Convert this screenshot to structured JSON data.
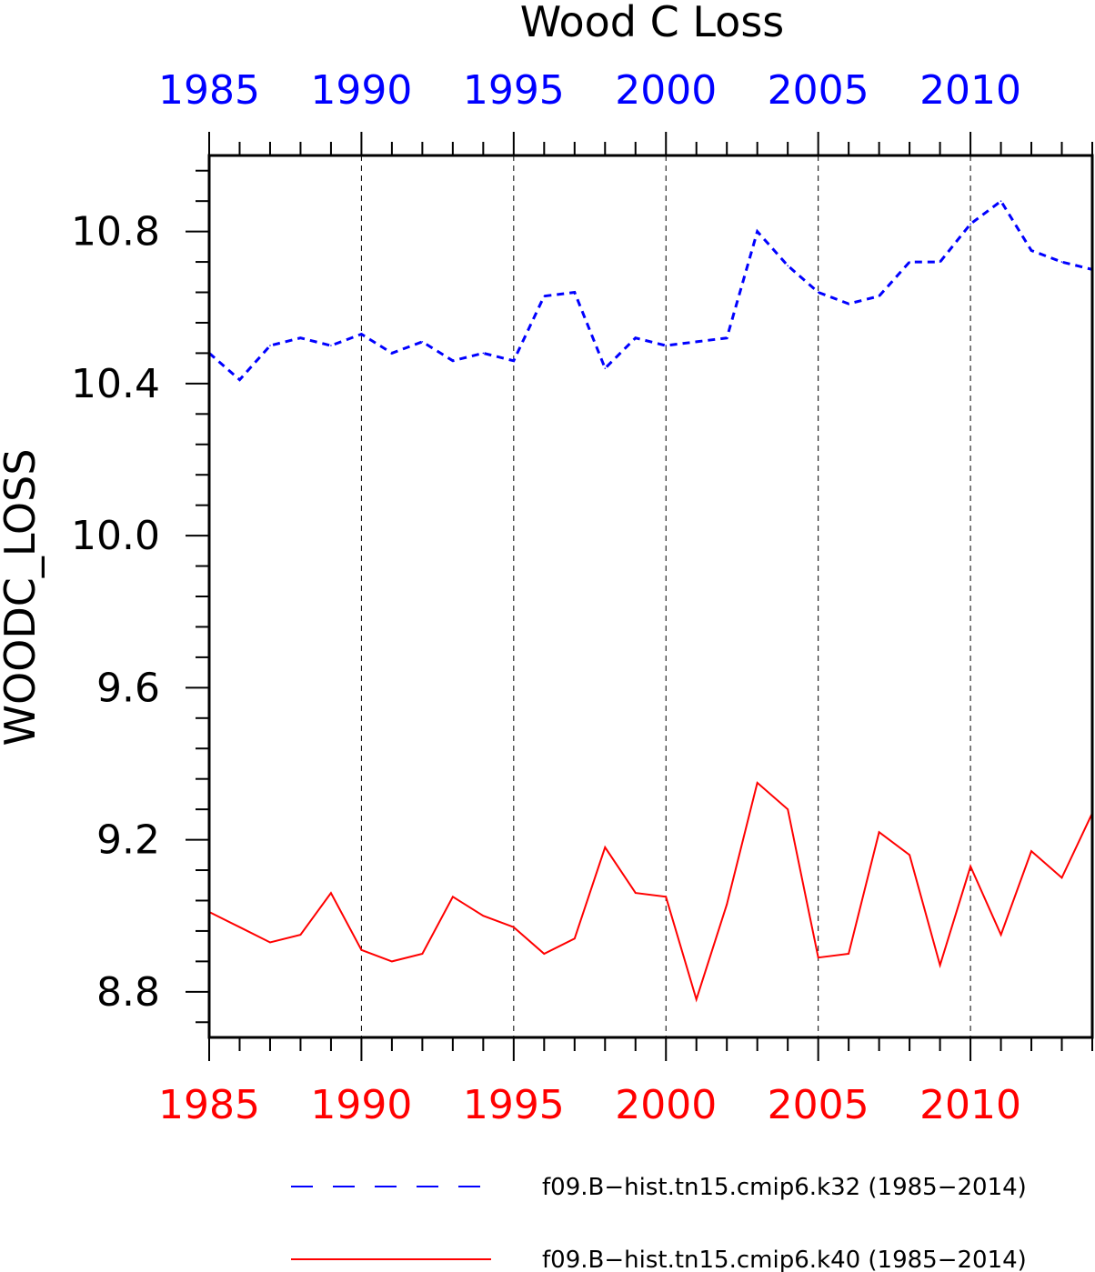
{
  "chart_data": {
    "type": "line",
    "title": "Wood C Loss",
    "xlabel": "",
    "ylabel": "WOODC_LOSS",
    "xlim": [
      1985,
      2014
    ],
    "ylim": [
      8.68,
      11.0
    ],
    "x_ticks": [
      1985,
      1990,
      1995,
      2000,
      2005,
      2010
    ],
    "y_ticks": [
      8.8,
      9.2,
      9.6,
      10.0,
      10.4,
      10.8
    ],
    "y_tick_labels": [
      "8.8",
      "9.2",
      "9.6",
      "10.0",
      "10.4",
      "10.8"
    ],
    "grid": "vertical dashed at major x ticks",
    "legend_position": "bottom",
    "x": [
      1985,
      1986,
      1987,
      1988,
      1989,
      1990,
      1991,
      1992,
      1993,
      1994,
      1995,
      1996,
      1997,
      1998,
      1999,
      2000,
      2001,
      2002,
      2003,
      2004,
      2005,
      2006,
      2007,
      2008,
      2009,
      2010,
      2011,
      2012,
      2013,
      2014
    ],
    "series": [
      {
        "name": "f09.B−hist.tn15.cmip6.k32 (1985−2014)",
        "color": "#0000ff",
        "style": "dashed",
        "axis_label_color": "top",
        "values": [
          10.48,
          10.41,
          10.5,
          10.52,
          10.5,
          10.53,
          10.48,
          10.51,
          10.46,
          10.48,
          10.46,
          10.63,
          10.64,
          10.44,
          10.52,
          10.5,
          10.51,
          10.52,
          10.8,
          10.71,
          10.64,
          10.61,
          10.63,
          10.72,
          10.72,
          10.82,
          10.88,
          10.75,
          10.72,
          10.7
        ]
      },
      {
        "name": "f09.B−hist.tn15.cmip6.k40 (1985−2014)",
        "color": "#ff0000",
        "style": "solid",
        "axis_label_color": "bottom",
        "values": [
          9.01,
          8.97,
          8.93,
          8.95,
          9.06,
          8.91,
          8.88,
          8.9,
          9.05,
          9.0,
          8.97,
          8.9,
          8.94,
          9.18,
          9.06,
          9.05,
          8.78,
          9.03,
          9.35,
          9.28,
          8.89,
          8.9,
          9.22,
          9.16,
          8.87,
          9.13,
          8.95,
          9.17,
          9.1,
          9.27
        ]
      }
    ]
  },
  "colors": {
    "top_axis_labels": "#0000ff",
    "bottom_axis_labels": "#ff0000",
    "frame": "#000000"
  }
}
